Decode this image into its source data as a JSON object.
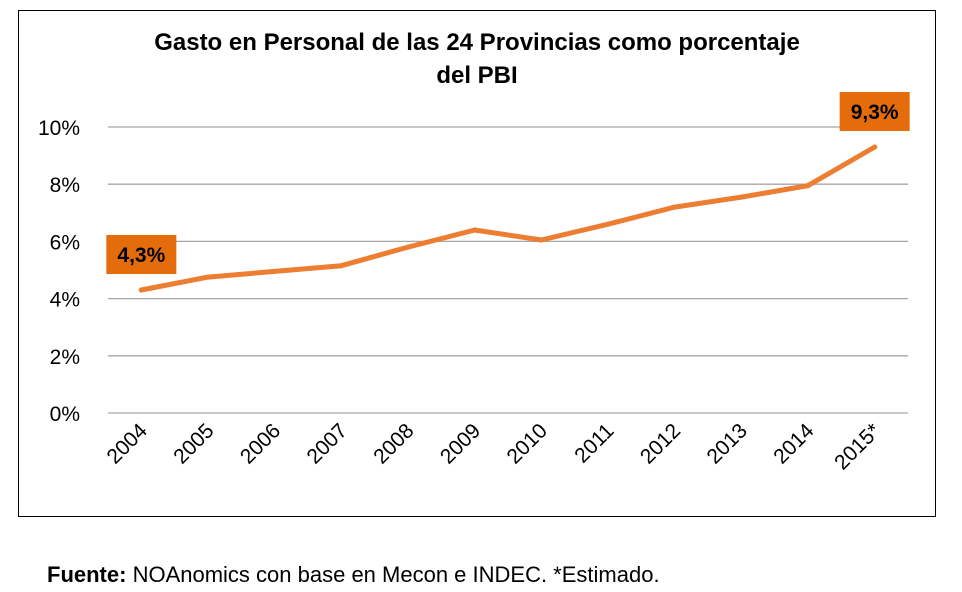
{
  "chart_data": {
    "type": "line",
    "title_lines": [
      "Gasto en Personal de las 24 Provincias como porcentaje",
      "del PBI"
    ],
    "categories": [
      "2004",
      "2005",
      "2006",
      "2007",
      "2008",
      "2009",
      "2010",
      "2011",
      "2012",
      "2013",
      "2014",
      "2015*"
    ],
    "series": [
      {
        "values": [
          4.3,
          4.75,
          4.95,
          5.15,
          5.8,
          6.4,
          6.05,
          6.6,
          7.2,
          7.55,
          7.95,
          9.3
        ]
      }
    ],
    "ylim": [
      0,
      10
    ],
    "yticks": [
      0,
      2,
      4,
      6,
      8,
      10
    ],
    "ytick_labels": [
      "0%",
      "2%",
      "4%",
      "6%",
      "8%",
      "10%"
    ],
    "grid": true,
    "annotations": [
      {
        "category": "2004",
        "label": "4,3%"
      },
      {
        "category": "2015*",
        "label": "9,3%"
      }
    ],
    "colors": {
      "line": "#ed7d31",
      "annotation_bg": "#e46c0a",
      "grid": "#a6a6a6"
    }
  },
  "source": {
    "label": "Fuente:",
    "text": " NOAnomics con base en Mecon e INDEC. *Estimado."
  }
}
